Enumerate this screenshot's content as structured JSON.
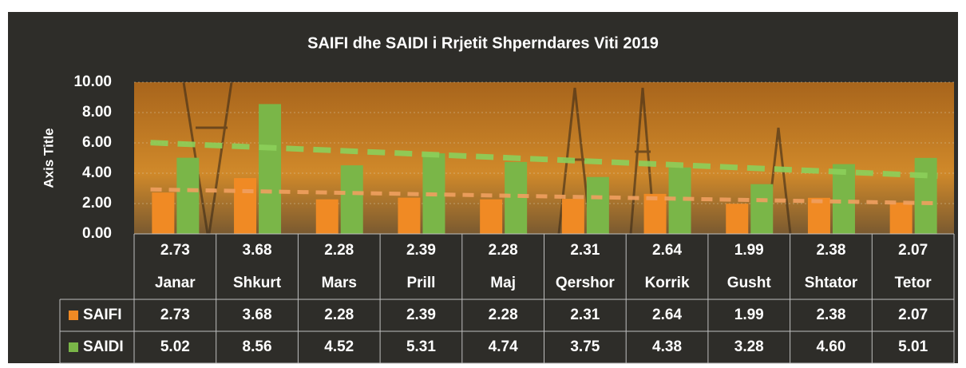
{
  "chart_data": {
    "type": "bar",
    "title": "SAIFI dhe SAIDI i Rrjetit Shperndares Viti 2019",
    "y_label": "Axis Title",
    "categories": [
      "Janar",
      "Shkurt",
      "Mars",
      "Prill",
      "Maj",
      "Qershor",
      "Korrik",
      "Gusht",
      "Shtator",
      "Tetor"
    ],
    "series": [
      {
        "name": "SAIFI",
        "color": "#f08a24",
        "values": [
          2.73,
          3.68,
          2.28,
          2.39,
          2.28,
          2.31,
          2.64,
          1.99,
          2.38,
          2.07
        ],
        "value_labels": [
          "2.73",
          "3.68",
          "2.28",
          "2.39",
          "2.28",
          "2.31",
          "2.64",
          "1.99",
          "2.38",
          "2.07"
        ]
      },
      {
        "name": "SAIDI",
        "color": "#7ab648",
        "values": [
          5.02,
          8.56,
          4.52,
          5.31,
          4.74,
          3.75,
          4.38,
          3.28,
          4.6,
          5.01
        ],
        "value_labels": [
          "5.02",
          "8.56",
          "4.52",
          "5.31",
          "4.74",
          "3.75",
          "4.38",
          "3.28",
          "4.60",
          "5.01"
        ]
      }
    ],
    "ylim": [
      0,
      10
    ],
    "yticks": [
      {
        "value": 0,
        "label": "0.00"
      },
      {
        "value": 2,
        "label": "2.00"
      },
      {
        "value": 4,
        "label": "4.00"
      },
      {
        "value": 6,
        "label": "6.00"
      },
      {
        "value": 8,
        "label": "8.00"
      },
      {
        "value": 10,
        "label": "10.00"
      }
    ],
    "grid": true,
    "trendline": true,
    "data_table": true
  }
}
